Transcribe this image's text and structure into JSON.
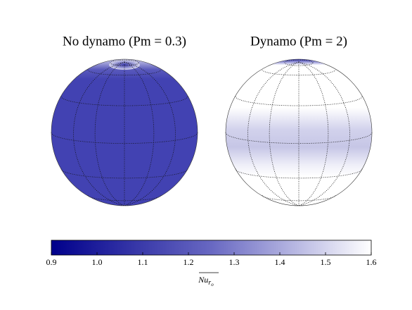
{
  "chart_data": {
    "type": "colorbar",
    "panels": [
      {
        "title": "No dynamo (Pm = 0.3)"
      },
      {
        "title": "Dynamo (Pm = 2)"
      }
    ],
    "colorbar_label": "Nu",
    "colorbar_label_subscript": "r",
    "colorbar_label_subsubscript": "o",
    "xlim": [
      0.9,
      1.6
    ],
    "xticks": [
      0.9,
      {
        "value": 1,
        "label": "1.0"
      },
      1.1,
      1.2,
      1.3,
      1.4,
      1.5,
      1.6
    ],
    "colormap": [
      "#00008b",
      "#6868c2",
      "#ffffff"
    ]
  }
}
